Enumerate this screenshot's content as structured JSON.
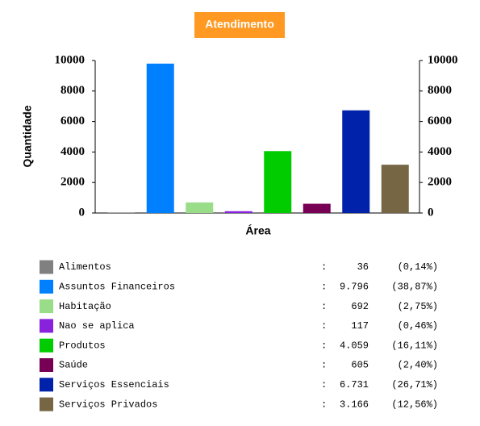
{
  "chart_data": {
    "type": "bar",
    "title": "Atendimento",
    "x_label": "Área",
    "y_label": "Quantidade",
    "categories": [
      "Alimentos",
      "Assuntos Financeiros",
      "Habitação",
      "Nao se aplica",
      "Produtos",
      "Saúde",
      "Serviços Essenciais",
      "Serviços Privados"
    ],
    "values": [
      36,
      9796,
      692,
      117,
      4059,
      605,
      6731,
      3166
    ],
    "value_labels": [
      "36",
      "9.796",
      "692",
      "117",
      "4.059",
      "605",
      "6.731",
      "3.166"
    ],
    "colors": [
      "#808080",
      "#0080ff",
      "#99dd88",
      "#8822dd",
      "#00cc00",
      "#770055",
      "#0022aa",
      "#776644"
    ],
    "percent": {
      "values": [
        0.14,
        38.87,
        2.75,
        0.46,
        16.11,
        2.4,
        26.71,
        12.56
      ],
      "value_labels": [
        "(0,14%)",
        "(38,87%)",
        "(2,75%)",
        "(0,46%)",
        "(16,11%)",
        "(2,40%)",
        "(26,71%)",
        "(12,56%)"
      ]
    },
    "ylim": [
      0,
      10000
    ],
    "yticks": [
      0,
      2000,
      4000,
      6000,
      8000,
      10000
    ],
    "y2lim": [
      0,
      10000
    ],
    "y2ticks": [
      0,
      2000,
      4000,
      6000,
      8000,
      10000
    ],
    "grid": false
  }
}
